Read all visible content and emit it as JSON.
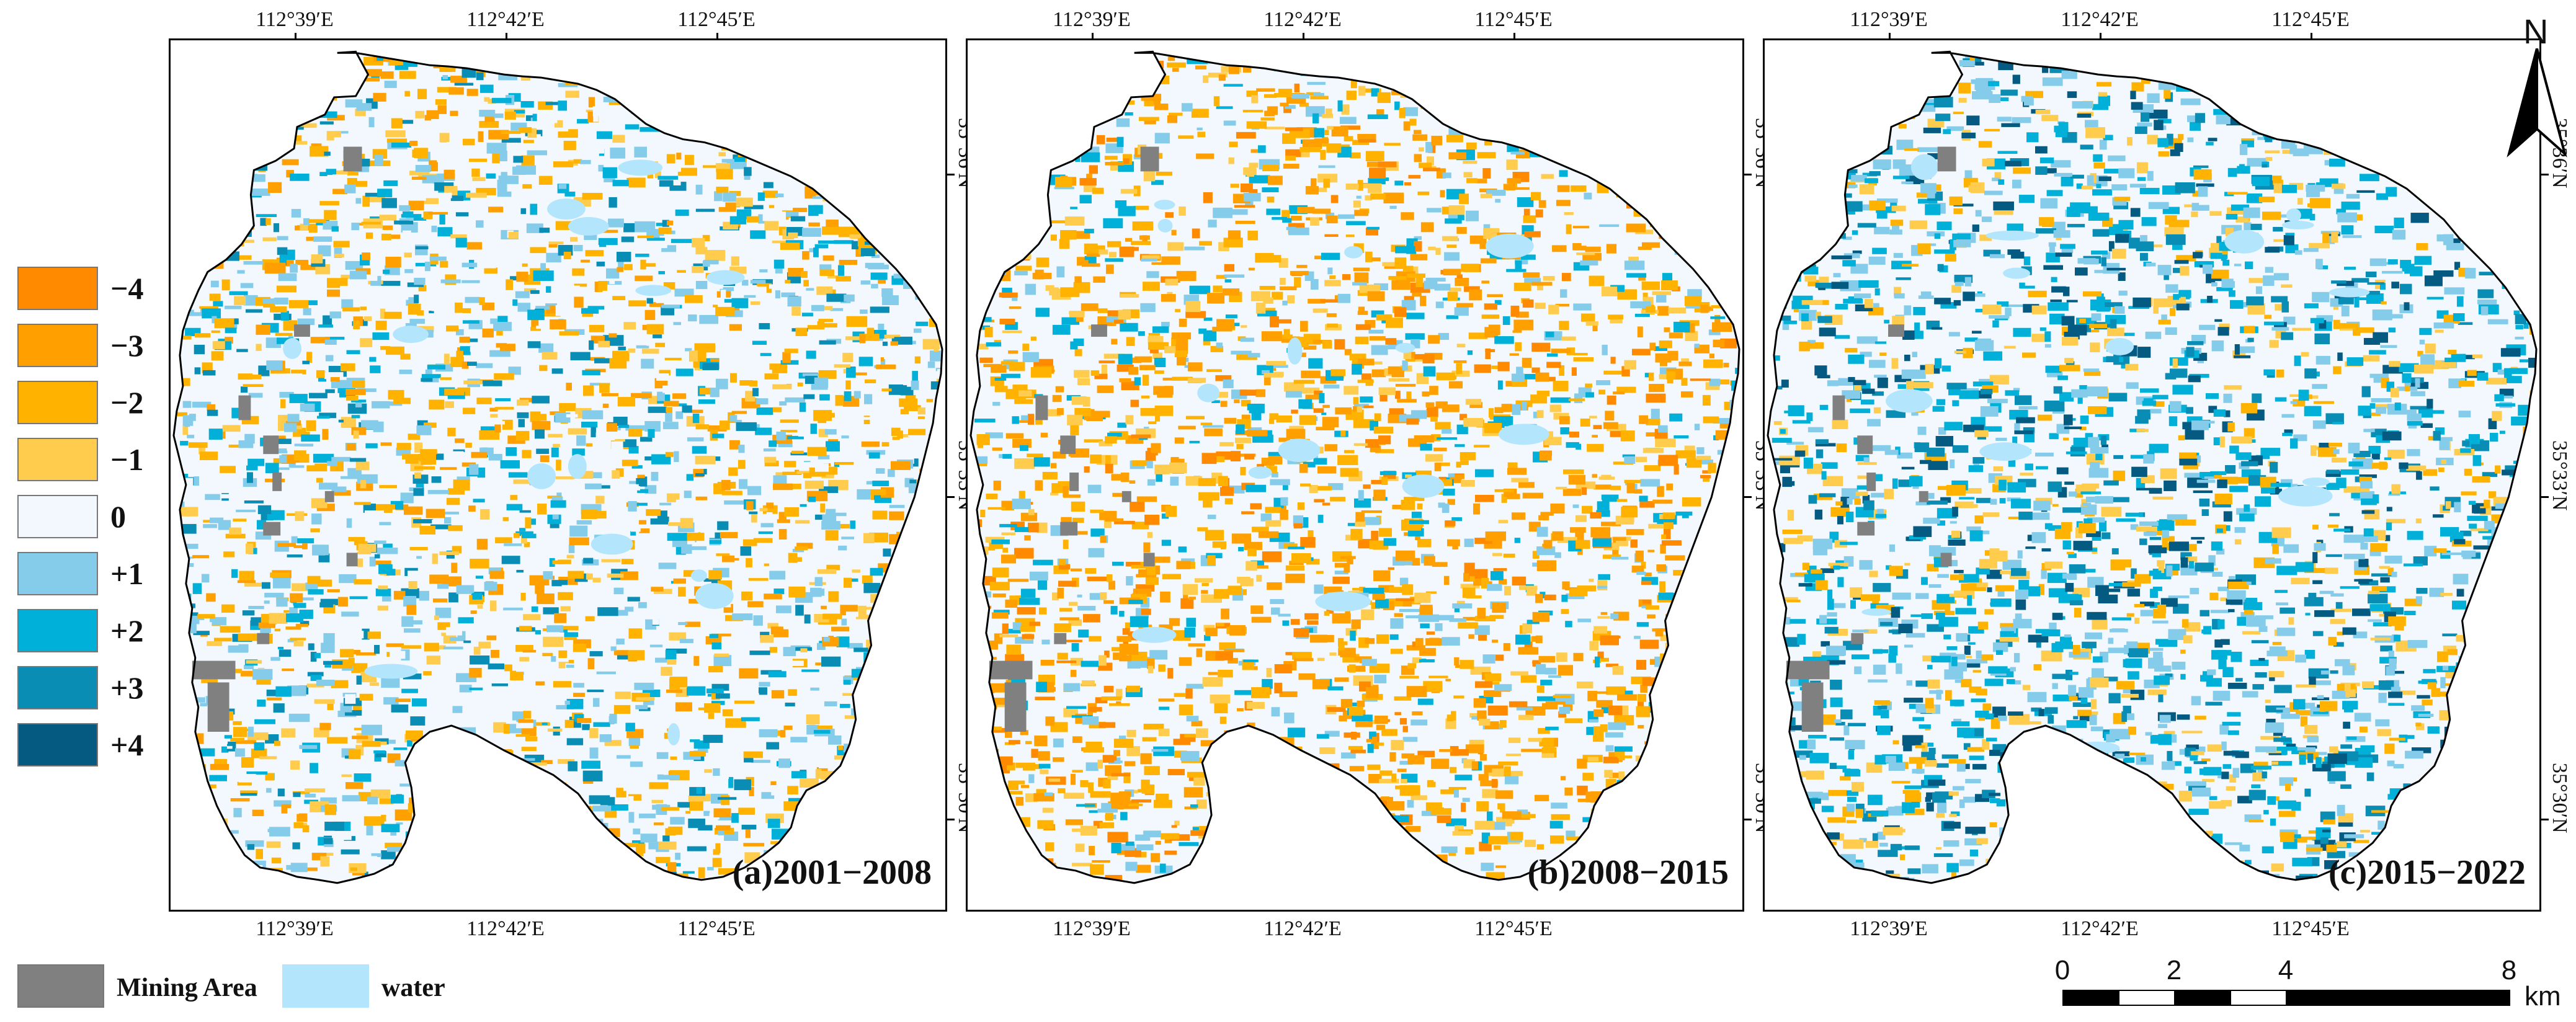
{
  "legend": {
    "items": [
      {
        "label": "−4",
        "color": "#ff8a00"
      },
      {
        "label": "−3",
        "color": "#ffa000"
      },
      {
        "label": "−2",
        "color": "#ffb300"
      },
      {
        "label": "−1",
        "color": "#ffcc4d"
      },
      {
        "label": "0",
        "color": "#f2f8fd"
      },
      {
        "label": "+1",
        "color": "#85ccea"
      },
      {
        "label": "+2",
        "color": "#00b0d8"
      },
      {
        "label": "+3",
        "color": "#0a8db5"
      },
      {
        "label": "+4",
        "color": "#045a80"
      }
    ]
  },
  "panels": [
    {
      "label": "(a)2001−2008",
      "top_ticks": [
        "112°39′E",
        "112°42′E",
        "112°45′E"
      ],
      "bottom_ticks": [
        "112°39′E",
        "112°42′E",
        "112°45′E"
      ],
      "right_ticks": [
        "35°36′N",
        "35°33′N",
        "35°30′N"
      ],
      "dominant": "mixed"
    },
    {
      "label": "(b)2008−2015",
      "top_ticks": [
        "112°39′E",
        "112°42′E",
        "112°45′E"
      ],
      "bottom_ticks": [
        "112°39′E",
        "112°42′E",
        "112°45′E"
      ],
      "right_ticks": [
        "35°36′N",
        "35°33′N",
        "35°30′N"
      ],
      "dominant": "decrease"
    },
    {
      "label": "(c)2015−2022",
      "top_ticks": [
        "112°39′E",
        "112°42′E",
        "112°45′E"
      ],
      "bottom_ticks": [
        "112°39′E",
        "112°42′E",
        "112°45′E"
      ],
      "right_ticks": [
        "35°36′N",
        "35°33′N",
        "35°30′N"
      ],
      "dominant": "increase"
    }
  ],
  "bottom_legend": {
    "mining": {
      "label": "Mining Area",
      "color": "#808080"
    },
    "water": {
      "label": "water",
      "color": "#b3e5fc"
    }
  },
  "scale": {
    "ticks": [
      "0",
      "2",
      "4",
      "8"
    ],
    "unit": "km"
  },
  "north": {
    "letter": "N"
  }
}
